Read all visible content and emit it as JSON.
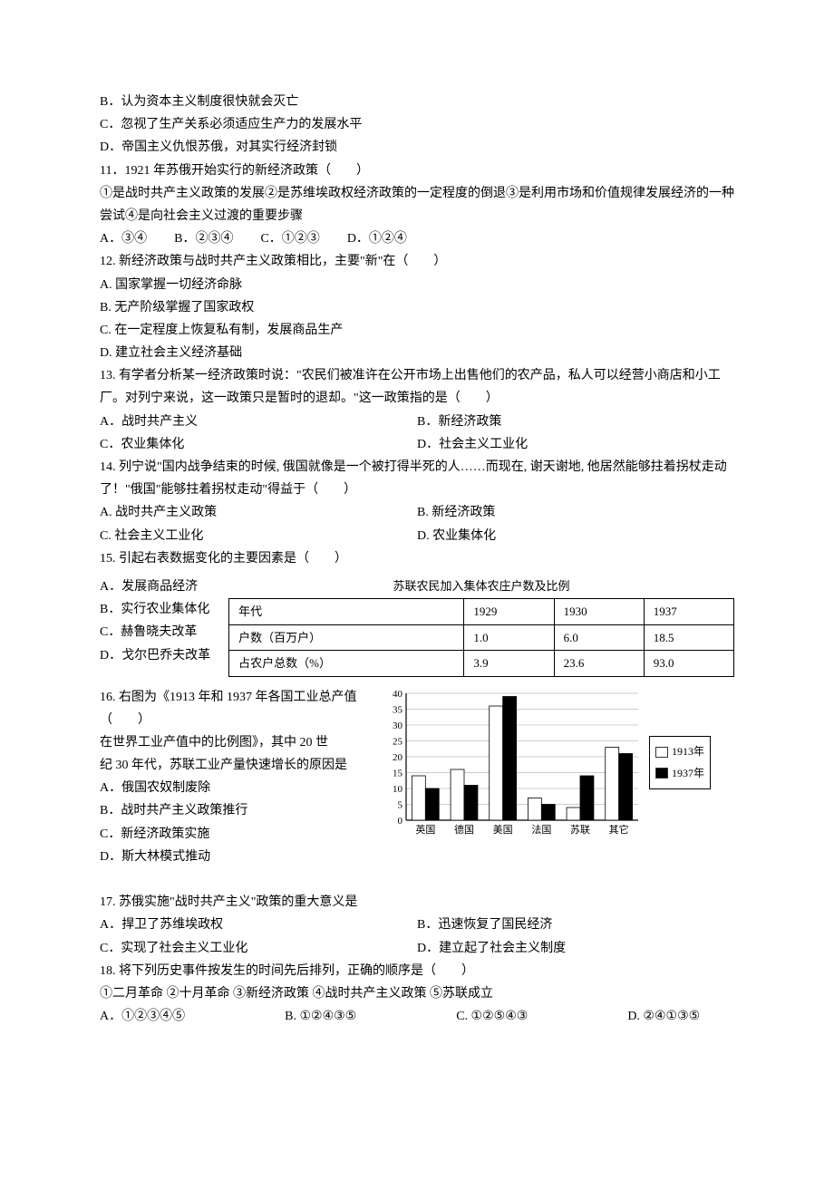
{
  "q10": {
    "B": "B．认为资本主义制度很快就会灭亡",
    "C": "C．忽视了生产关系必须适应生产力的发展水平",
    "D": "D．帝国主义仇恨苏俄，对其实行经济封锁"
  },
  "q11": {
    "stem": "11．1921 年苏俄开始实行的新经济政策（　　）",
    "sub": "①是战时共产主义政策的发展②是苏维埃政权经济政策的一定程度的倒退③是利用市场和价值规律发展经济的一种尝试④是向社会主义过渡的重要步骤",
    "A": "A．③④",
    "B": "B．②③④",
    "C": "C．①②③",
    "D": "D．①②④"
  },
  "q12": {
    "stem": "12. 新经济政策与战时共产主义政策相比，主要\"新\"在（　　）",
    "A": "A. 国家掌握一切经济命脉",
    "B": "B. 无产阶级掌握了国家政权",
    "C": "C. 在一定程度上恢复私有制，发展商品生产",
    "D": "D. 建立社会主义经济基础"
  },
  "q13": {
    "stem": "13. 有学者分析某一经济政策时说：\"农民们被准许在公开市场上出售他们的农产品，私人可以经营小商店和小工厂。对列宁来说，这一政策只是暂时的退却。\"这一政策指的是（　　）",
    "A": "A．战时共产主义",
    "B": "B．新经济政策",
    "C": "C．农业集体化",
    "D": "D．社会主义工业化"
  },
  "q14": {
    "stem": "14. 列宁说\"国内战争结束的时候, 俄国就像是一个被打得半死的人……而现在, 谢天谢地, 他居然能够拄着拐杖走动了！\"俄国\"能够拄着拐杖走动\"得益于（　　）",
    "A": "A. 战时共产主义政策",
    "B": "B. 新经济政策",
    "C": "C. 社会主义工业化",
    "D": "D. 农业集体化"
  },
  "q15": {
    "stem": "15. 引起右表数据变化的主要因素是（　　）",
    "A": "A．发展商品经济",
    "B": "B．实行农业集体化",
    "C": "C．赫鲁晓夫改革",
    "D": "D．戈尔巴乔夫改革",
    "table_title": "苏联农民加入集体农庄户数及比例",
    "table": {
      "cols": [
        "年代",
        "1929",
        "1930",
        "1937"
      ],
      "rows": [
        [
          "户数（百万户）",
          "1.0",
          "6.0",
          "18.5"
        ],
        [
          "占农户总数（%）",
          "3.9",
          "23.6",
          "93.0"
        ]
      ]
    }
  },
  "q16": {
    "stem1": "16. 右图为《1913 年和 1937 年各国工业总产值（　　）",
    "stem2": "在世界工业产值中的比例图》，其中 20 世",
    "stem3": "纪 30 年代，苏联工业产量快速增长的原因是",
    "A": "A．俄国农奴制废除",
    "B": "B．战时共产主义政策推行",
    "C": "C．新经济政策实施",
    "D": "D．斯大林模式推动",
    "chart": {
      "type": "bar",
      "categories": [
        "英国",
        "德国",
        "美国",
        "法国",
        "苏联",
        "其它"
      ],
      "series": [
        {
          "name": "1913年",
          "color": "#ffffff",
          "values": [
            14,
            16,
            36,
            7,
            4,
            23
          ]
        },
        {
          "name": "1937年",
          "color": "#000000",
          "values": [
            10,
            11,
            39,
            5,
            14,
            21
          ]
        }
      ],
      "ylim": [
        0,
        40
      ],
      "ytick_step": 5,
      "background_color": "#ffffff",
      "grid_color": "#cccccc",
      "bar_width": 0.35,
      "axis_color": "#000000",
      "label_fontsize": 11
    }
  },
  "q17": {
    "stem": "17. 苏俄实施\"战时共产主义\"政策的重大意义是",
    "A": "A．捍卫了苏维埃政权",
    "B": "B．迅速恢复了国民经济",
    "C": "C．实现了社会主义工业化",
    "D": "D．建立起了社会主义制度"
  },
  "q18": {
    "stem": "18. 将下列历史事件按发生的时间先后排列，正确的顺序是（　　）",
    "sub": "①二月革命  ②十月革命  ③新经济政策  ④战时共产主义政策  ⑤苏联成立",
    "A": "A．①②③④⑤",
    "B": "B. ①②④③⑤",
    "C": "C. ①②⑤④③",
    "D": "D. ②④①③⑤"
  }
}
